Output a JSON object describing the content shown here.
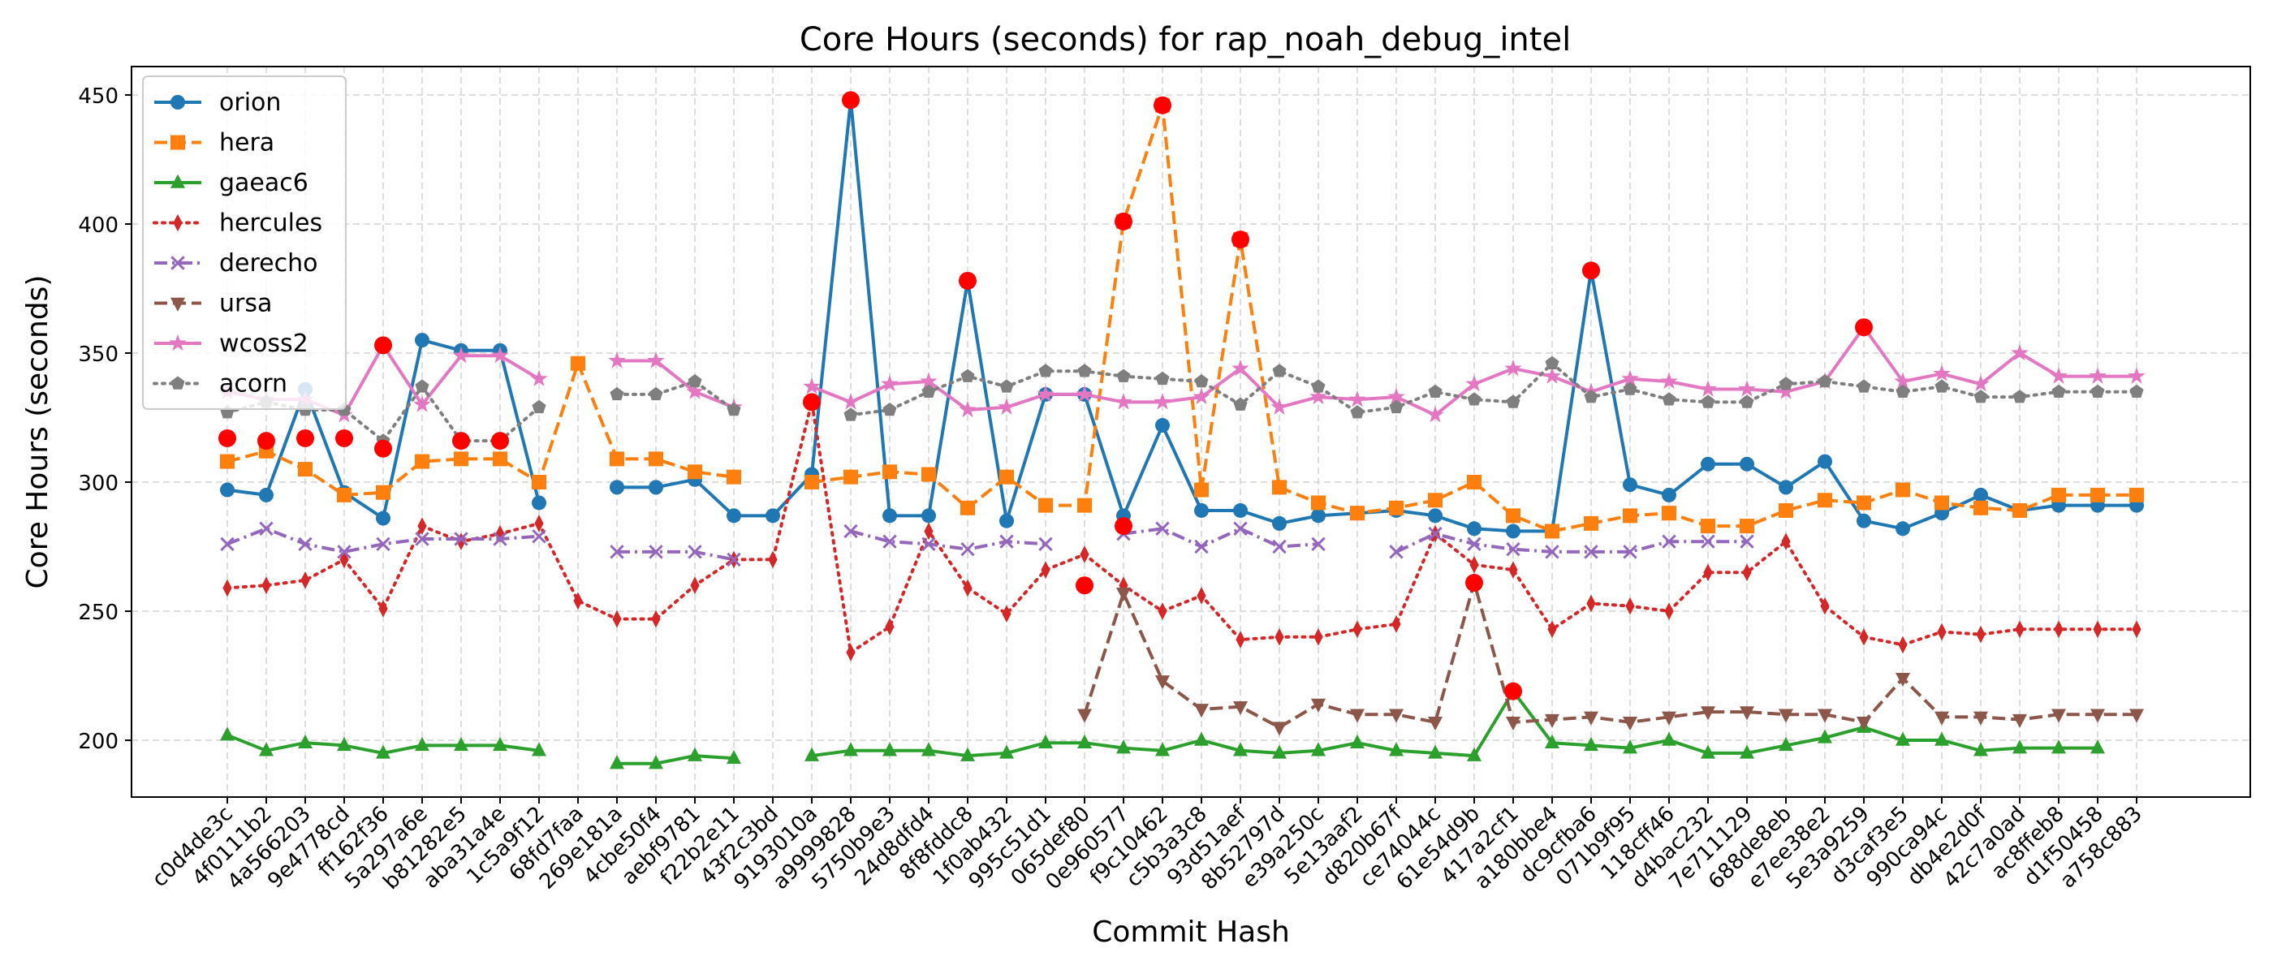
{
  "chart_data": {
    "type": "line",
    "title": "Core Hours (seconds) for rap_noah_debug_intel",
    "xlabel": "Commit Hash",
    "ylabel": "Core Hours (seconds)",
    "ylim": [
      178,
      461
    ],
    "yticks": [
      200,
      250,
      300,
      350,
      400,
      450
    ],
    "grid": true,
    "legend_position": "top-left",
    "categories": [
      "c0d4de3c",
      "4f0111b2",
      "4a566203",
      "9e4778cd",
      "ff162f36",
      "5a297a6e",
      "b81282e5",
      "aba31a4e",
      "1c5a9f12",
      "68fd7faa",
      "269e181a",
      "4cbe50f4",
      "aebf9781",
      "f22b2e11",
      "43f2c3bd",
      "9193010a",
      "a9999828",
      "5750b9e3",
      "24d8dfd4",
      "8f8fddc8",
      "1f0ab432",
      "995c51d1",
      "065def80",
      "0e960577",
      "f9c10462",
      "c5b3a3c8",
      "93d51aef",
      "8b52797d",
      "e39a250c",
      "5e13aaf2",
      "d820b67f",
      "ce74044c",
      "61e54d9b",
      "417a2cf1",
      "a180bbe4",
      "dc9cfba6",
      "071b9f95",
      "118cff46",
      "d4bac232",
      "7e711129",
      "688de8eb",
      "e7ee38e2",
      "5e3a9259",
      "d3caf3e5",
      "990ca94c",
      "db4e2d0f",
      "42c7a0ad",
      "ac8ffeb8",
      "d1f50458",
      "a758c883"
    ],
    "series": [
      {
        "name": "orion",
        "color": "#1f77b4",
        "dash": "solid",
        "marker": "circle",
        "values": [
          297,
          295,
          336,
          296,
          286,
          355,
          351,
          351,
          292,
          null,
          298,
          298,
          301,
          287,
          287,
          303,
          448,
          287,
          287,
          378,
          285,
          334,
          334,
          287,
          322,
          289,
          289,
          284,
          287,
          288,
          289,
          287,
          282,
          281,
          281,
          382,
          299,
          295,
          307,
          307,
          298,
          308,
          285,
          282,
          288,
          295,
          289,
          291,
          291,
          291
        ]
      },
      {
        "name": "hera",
        "color": "#ff7f0e",
        "dash": "dashed",
        "marker": "square",
        "values": [
          308,
          312,
          305,
          295,
          296,
          308,
          309,
          309,
          300,
          346,
          309,
          309,
          304,
          302,
          null,
          300,
          302,
          304,
          303,
          290,
          302,
          291,
          291,
          401,
          446,
          297,
          394,
          298,
          292,
          288,
          290,
          293,
          300,
          287,
          281,
          284,
          287,
          288,
          283,
          283,
          289,
          293,
          292,
          297,
          292,
          290,
          289,
          295,
          295,
          295
        ]
      },
      {
        "name": "gaeac6",
        "color": "#2ca02c",
        "dash": "solid",
        "marker": "triangle",
        "values": [
          202,
          196,
          199,
          198,
          195,
          198,
          198,
          198,
          196,
          null,
          191,
          191,
          194,
          193,
          null,
          194,
          196,
          196,
          196,
          194,
          195,
          199,
          199,
          197,
          196,
          200,
          196,
          195,
          196,
          199,
          196,
          195,
          194,
          219,
          199,
          198,
          197,
          200,
          195,
          195,
          198,
          201,
          205,
          200,
          200,
          196,
          197,
          197,
          197,
          null
        ]
      },
      {
        "name": "hercules",
        "color": "#d62728",
        "dash": "dotted",
        "marker": "thin_diamond",
        "values": [
          259,
          260,
          262,
          270,
          251,
          283,
          277,
          280,
          284,
          254,
          247,
          247,
          260,
          270,
          270,
          331,
          234,
          244,
          281,
          259,
          249,
          266,
          272,
          260,
          250,
          256,
          239,
          240,
          240,
          243,
          245,
          280,
          268,
          266,
          243,
          253,
          252,
          250,
          265,
          265,
          277,
          252,
          240,
          237,
          242,
          241,
          243,
          243,
          243,
          243
        ]
      },
      {
        "name": "derecho",
        "color": "#9467bd",
        "dash": "dashdot",
        "marker": "x",
        "values": [
          276,
          282,
          276,
          273,
          276,
          278,
          278,
          278,
          279,
          null,
          273,
          273,
          273,
          270,
          null,
          null,
          281,
          277,
          276,
          274,
          277,
          276,
          null,
          280,
          282,
          275,
          282,
          275,
          276,
          null,
          273,
          280,
          276,
          274,
          273,
          273,
          273,
          277,
          277,
          277,
          null,
          null,
          null,
          null,
          null,
          null,
          null,
          null,
          null,
          null
        ]
      },
      {
        "name": "ursa",
        "color": "#8c564b",
        "dash": "dashed",
        "marker": "triangle_down",
        "values": [
          null,
          null,
          null,
          null,
          null,
          null,
          null,
          null,
          null,
          null,
          null,
          null,
          null,
          null,
          null,
          null,
          null,
          null,
          null,
          null,
          null,
          null,
          210,
          257,
          223,
          212,
          213,
          205,
          214,
          210,
          210,
          207,
          261,
          207,
          208,
          209,
          207,
          209,
          211,
          211,
          210,
          210,
          207,
          224,
          209,
          209,
          208,
          210,
          210,
          210
        ]
      },
      {
        "name": "wcoss2",
        "color": "#e377c2",
        "dash": "solid",
        "marker": "star",
        "values": [
          335,
          332,
          332,
          326,
          353,
          330,
          349,
          349,
          340,
          null,
          347,
          347,
          335,
          329,
          null,
          337,
          331,
          338,
          339,
          328,
          329,
          334,
          334,
          331,
          331,
          333,
          344,
          329,
          333,
          332,
          333,
          326,
          338,
          344,
          341,
          335,
          340,
          339,
          336,
          336,
          335,
          339,
          360,
          339,
          342,
          338,
          350,
          341,
          341,
          341
        ]
      },
      {
        "name": "acorn",
        "color": "#7f7f7f",
        "dash": "dotted",
        "marker": "pentagon",
        "values": [
          327,
          331,
          328,
          328,
          316,
          337,
          316,
          316,
          329,
          null,
          334,
          334,
          339,
          328,
          null,
          null,
          326,
          328,
          335,
          341,
          337,
          343,
          343,
          341,
          340,
          339,
          330,
          343,
          337,
          327,
          329,
          335,
          332,
          331,
          346,
          333,
          336,
          332,
          331,
          331,
          338,
          339,
          337,
          335,
          337,
          333,
          333,
          335,
          335,
          335
        ]
      }
    ],
    "highlights": {
      "color": "#ff0000",
      "points": [
        {
          "category": "c0d4de3c",
          "value": 317
        },
        {
          "category": "4f0111b2",
          "value": 316
        },
        {
          "category": "4a566203",
          "value": 317
        },
        {
          "category": "9e4778cd",
          "value": 317
        },
        {
          "category": "ff162f36",
          "value": 313
        },
        {
          "category": "ff162f36",
          "value": 353
        },
        {
          "category": "b81282e5",
          "value": 316
        },
        {
          "category": "aba31a4e",
          "value": 316
        },
        {
          "category": "9193010a",
          "value": 331
        },
        {
          "category": "a9999828",
          "value": 448
        },
        {
          "category": "8f8fddc8",
          "value": 378
        },
        {
          "category": "065def80",
          "value": 260
        },
        {
          "category": "0e960577",
          "value": 401
        },
        {
          "category": "0e960577",
          "value": 283
        },
        {
          "category": "f9c10462",
          "value": 446
        },
        {
          "category": "93d51aef",
          "value": 394
        },
        {
          "category": "61e54d9b",
          "value": 261
        },
        {
          "category": "417a2cf1",
          "value": 219
        },
        {
          "category": "dc9cfba6",
          "value": 382
        },
        {
          "category": "5e3a9259",
          "value": 360
        }
      ]
    }
  }
}
